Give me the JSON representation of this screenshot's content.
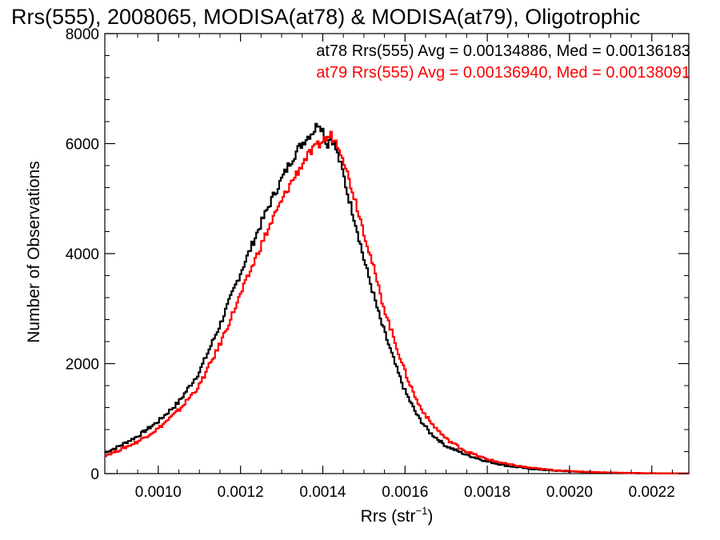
{
  "chart_data": {
    "type": "line",
    "title": "Rrs(555), 2008065, MODISA(at78) & MODISA(at79), Oligotrophic",
    "xlabel": "Rrs (str",
    "xlabel_sup": "−1",
    "xlabel_end": ")",
    "ylabel": "Number of Observations",
    "xlim": [
      0.00087,
      0.00229
    ],
    "ylim": [
      0,
      8000
    ],
    "x_ticks": [
      {
        "value": 0.001,
        "label": "0.0010"
      },
      {
        "value": 0.0012,
        "label": "0.0012"
      },
      {
        "value": 0.0014,
        "label": "0.0014"
      },
      {
        "value": 0.0016,
        "label": "0.0016"
      },
      {
        "value": 0.0018,
        "label": "0.0018"
      },
      {
        "value": 0.002,
        "label": "0.0020"
      },
      {
        "value": 0.0022,
        "label": "0.0022"
      }
    ],
    "y_ticks": [
      {
        "value": 0,
        "label": "0"
      },
      {
        "value": 2000,
        "label": "2000"
      },
      {
        "value": 4000,
        "label": "4000"
      },
      {
        "value": 6000,
        "label": "6000"
      },
      {
        "value": 8000,
        "label": "8000"
      }
    ],
    "grid": false,
    "legend_position": "top-right",
    "series": [
      {
        "name": "at78",
        "legend": "at78 Rrs(555) Avg = 0.00134886, Med = 0.00136183",
        "color": "#000000",
        "x": [
          0.00087,
          0.0009,
          0.00095,
          0.001,
          0.00105,
          0.0011,
          0.00115,
          0.0012,
          0.00125,
          0.00128,
          0.0013,
          0.00132,
          0.00134,
          0.00136,
          0.00138,
          0.00139,
          0.0014,
          0.00141,
          0.00142,
          0.00143,
          0.00144,
          0.00145,
          0.00146,
          0.00148,
          0.0015,
          0.00152,
          0.00154,
          0.00156,
          0.00158,
          0.0016,
          0.00163,
          0.00166,
          0.0017,
          0.00175,
          0.0018,
          0.00185,
          0.0019,
          0.00195,
          0.002,
          0.00205,
          0.0021,
          0.00215,
          0.0022,
          0.00229
        ],
        "y": [
          380,
          480,
          680,
          950,
          1300,
          1850,
          2700,
          3650,
          4550,
          5050,
          5350,
          5650,
          5900,
          6100,
          6250,
          6400,
          6250,
          5950,
          6150,
          5950,
          5700,
          5450,
          5100,
          4550,
          3900,
          3350,
          2800,
          2350,
          1900,
          1500,
          1050,
          750,
          500,
          340,
          220,
          140,
          90,
          60,
          40,
          25,
          15,
          10,
          5,
          2
        ]
      },
      {
        "name": "at79",
        "legend": "at79 Rrs(555) Avg = 0.00136940, Med = 0.00138091",
        "color": "#ff0000",
        "x": [
          0.00087,
          0.0009,
          0.00095,
          0.001,
          0.00105,
          0.0011,
          0.00115,
          0.0012,
          0.00125,
          0.00128,
          0.0013,
          0.00132,
          0.00134,
          0.00136,
          0.00138,
          0.0014,
          0.00141,
          0.00142,
          0.00143,
          0.00144,
          0.00145,
          0.00146,
          0.00148,
          0.0015,
          0.00152,
          0.00154,
          0.00156,
          0.00158,
          0.0016,
          0.00163,
          0.00166,
          0.0017,
          0.00175,
          0.0018,
          0.00185,
          0.0019,
          0.00195,
          0.002,
          0.00205,
          0.0021,
          0.00215,
          0.0022,
          0.00229
        ],
        "y": [
          330,
          410,
          580,
          820,
          1150,
          1600,
          2350,
          3250,
          4150,
          4650,
          4950,
          5250,
          5500,
          5750,
          5900,
          6050,
          6100,
          6150,
          6050,
          5950,
          5750,
          5450,
          4950,
          4400,
          3850,
          3250,
          2750,
          2300,
          1850,
          1300,
          950,
          630,
          400,
          260,
          170,
          110,
          70,
          45,
          30,
          20,
          12,
          6,
          2
        ]
      }
    ]
  }
}
